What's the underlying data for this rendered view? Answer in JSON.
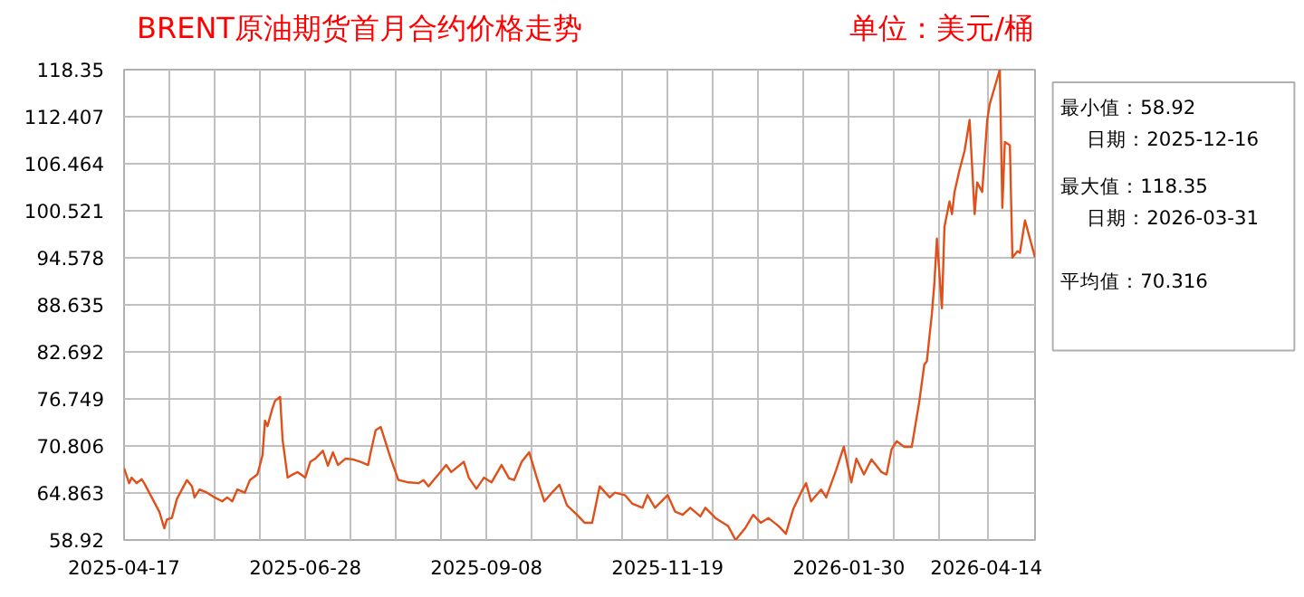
{
  "chart_data": {
    "type": "line",
    "title": "BRENT原油期货首月合约价格走势",
    "subtitle": "单位：美元/桶",
    "x": [
      "2025-04-17",
      "2025-04-19",
      "2025-04-20",
      "2025-04-22",
      "2025-04-24",
      "2025-04-25",
      "2025-04-27",
      "2025-05-01",
      "2025-05-03",
      "2025-05-04",
      "2025-05-06",
      "2025-05-08",
      "2025-05-12",
      "2025-05-14",
      "2025-05-15",
      "2025-05-17",
      "2025-05-20",
      "2025-05-23",
      "2025-05-26",
      "2025-05-28",
      "2025-05-30",
      "2025-06-01",
      "2025-06-04",
      "2025-06-06",
      "2025-06-09",
      "2025-06-11",
      "2025-06-12",
      "2025-06-13",
      "2025-06-15",
      "2025-06-16",
      "2025-06-18",
      "2025-06-19",
      "2025-06-21",
      "2025-06-23",
      "2025-06-25",
      "2025-06-28",
      "2025-06-30",
      "2025-07-02",
      "2025-07-05",
      "2025-07-07",
      "2025-07-09",
      "2025-07-11",
      "2025-07-14",
      "2025-07-17",
      "2025-07-20",
      "2025-07-23",
      "2025-07-24",
      "2025-07-26",
      "2025-07-28",
      "2025-07-30",
      "2025-08-01",
      "2025-08-04",
      "2025-08-08",
      "2025-08-12",
      "2025-08-14",
      "2025-08-16",
      "2025-08-18",
      "2025-08-21",
      "2025-08-23",
      "2025-08-25",
      "2025-08-30",
      "2025-09-01",
      "2025-09-04",
      "2025-09-07",
      "2025-09-10",
      "2025-09-14",
      "2025-09-17",
      "2025-09-19",
      "2025-09-22",
      "2025-09-25",
      "2025-09-28",
      "2025-10-01",
      "2025-10-04",
      "2025-10-07",
      "2025-10-10",
      "2025-10-14",
      "2025-10-17",
      "2025-10-20",
      "2025-10-23",
      "2025-10-27",
      "2025-10-29",
      "2025-11-02",
      "2025-11-05",
      "2025-11-09",
      "2025-11-11",
      "2025-11-14",
      "2025-11-19",
      "2025-11-22",
      "2025-11-25",
      "2025-11-28",
      "2025-12-02",
      "2025-12-04",
      "2025-12-08",
      "2025-12-13",
      "2025-12-16",
      "2025-12-20",
      "2025-12-23",
      "2025-12-26",
      "2025-12-29",
      "2026-01-02",
      "2026-01-05",
      "2026-01-08",
      "2026-01-11",
      "2026-01-13",
      "2026-01-15",
      "2026-01-19",
      "2026-01-21",
      "2026-01-25",
      "2026-01-28",
      "2026-01-31",
      "2026-02-02",
      "2026-02-05",
      "2026-02-08",
      "2026-02-12",
      "2026-02-14",
      "2026-02-16",
      "2026-02-18",
      "2026-02-21",
      "2026-02-24",
      "2026-02-27",
      "2026-03-01",
      "2026-03-02",
      "2026-03-04",
      "2026-03-05",
      "2026-03-06",
      "2026-03-08",
      "2026-03-09",
      "2026-03-11",
      "2026-03-12",
      "2026-03-13",
      "2026-03-15",
      "2026-03-17",
      "2026-03-19",
      "2026-03-21",
      "2026-03-22",
      "2026-03-24",
      "2026-03-26",
      "2026-03-27",
      "2026-03-31",
      "2026-04-01",
      "2026-04-02",
      "2026-04-04",
      "2026-04-05",
      "2026-04-07",
      "2026-04-08",
      "2026-04-10",
      "2026-04-14"
    ],
    "series": [
      {
        "color": "#e0501a",
        "values": [
          68.0,
          66.1,
          66.8,
          66.1,
          66.6,
          66.1,
          64.9,
          62.5,
          60.4,
          61.5,
          61.7,
          64.1,
          66.5,
          65.7,
          64.3,
          65.3,
          64.9,
          64.3,
          63.8,
          64.3,
          63.8,
          65.3,
          64.9,
          66.5,
          67.2,
          69.6,
          74.0,
          73.3,
          75.6,
          76.5,
          77.0,
          71.6,
          66.8,
          67.2,
          67.5,
          66.8,
          68.8,
          69.2,
          70.2,
          68.3,
          70.0,
          68.4,
          69.2,
          69.1,
          68.8,
          68.4,
          70.0,
          72.8,
          73.2,
          71.2,
          69.2,
          66.5,
          66.2,
          66.1,
          66.5,
          65.7,
          66.5,
          67.6,
          68.4,
          67.5,
          68.8,
          66.8,
          65.4,
          66.8,
          66.2,
          68.4,
          66.7,
          66.5,
          68.8,
          70.0,
          66.8,
          63.8,
          64.9,
          65.9,
          63.3,
          62.1,
          61.1,
          61.1,
          65.7,
          64.3,
          64.9,
          64.6,
          63.5,
          63.0,
          64.6,
          63.0,
          64.6,
          62.5,
          62.1,
          63.0,
          61.9,
          63.0,
          61.7,
          60.7,
          58.92,
          60.5,
          62.1,
          61.1,
          61.7,
          60.7,
          59.7,
          62.9,
          64.9,
          66.1,
          63.8,
          65.3,
          64.3,
          67.8,
          70.7,
          66.2,
          69.2,
          67.2,
          69.1,
          67.5,
          67.2,
          70.4,
          71.4,
          70.7,
          70.7,
          76.4,
          81.1,
          81.5,
          87.5,
          91.4,
          97.0,
          88.2,
          98.5,
          101.7,
          100.1,
          102.9,
          105.7,
          108.1,
          112.0,
          100.1,
          104.1,
          102.9,
          112.0,
          114.0,
          118.35,
          100.9,
          109.2,
          108.8,
          94.6,
          95.4,
          95.2,
          99.3,
          94.6
        ]
      }
    ],
    "xlim": [
      "2025-04-17",
      "2026-04-14"
    ],
    "xticks": [
      {
        "value": "2025-04-17",
        "label": "2025-04-17"
      },
      {
        "value": "2025-05-05",
        "label": null
      },
      {
        "value": "2025-05-23",
        "label": null
      },
      {
        "value": "2025-06-10",
        "label": null
      },
      {
        "value": "2025-06-28",
        "label": "2025-06-28"
      },
      {
        "value": "2025-07-16",
        "label": null
      },
      {
        "value": "2025-08-03",
        "label": null
      },
      {
        "value": "2025-08-21",
        "label": null
      },
      {
        "value": "2025-09-08",
        "label": "2025-09-08"
      },
      {
        "value": "2025-09-26",
        "label": null
      },
      {
        "value": "2025-10-14",
        "label": null
      },
      {
        "value": "2025-11-01",
        "label": null
      },
      {
        "value": "2025-11-19",
        "label": "2025-11-19"
      },
      {
        "value": "2025-12-07",
        "label": null
      },
      {
        "value": "2025-12-25",
        "label": null
      },
      {
        "value": "2026-01-12",
        "label": null
      },
      {
        "value": "2026-01-30",
        "label": "2026-01-30"
      },
      {
        "value": "2026-02-17",
        "label": null
      },
      {
        "value": "2026-03-07",
        "label": null
      },
      {
        "value": "2026-03-26",
        "label": null
      },
      {
        "value": "2026-04-14",
        "label": "2026-04-14"
      }
    ],
    "ylim": [
      58.92,
      118.35
    ],
    "yticks": [
      58.92,
      64.863,
      70.806,
      76.749,
      82.692,
      88.635,
      94.578,
      100.521,
      106.464,
      112.407,
      118.35
    ],
    "grid": true,
    "marker": "none",
    "line_style": "solid",
    "annotations": [
      "最小值：58.92",
      "日期：2025-12-16",
      "最大值：118.35",
      "日期：2026-03-31",
      "平均值：70.316"
    ]
  }
}
